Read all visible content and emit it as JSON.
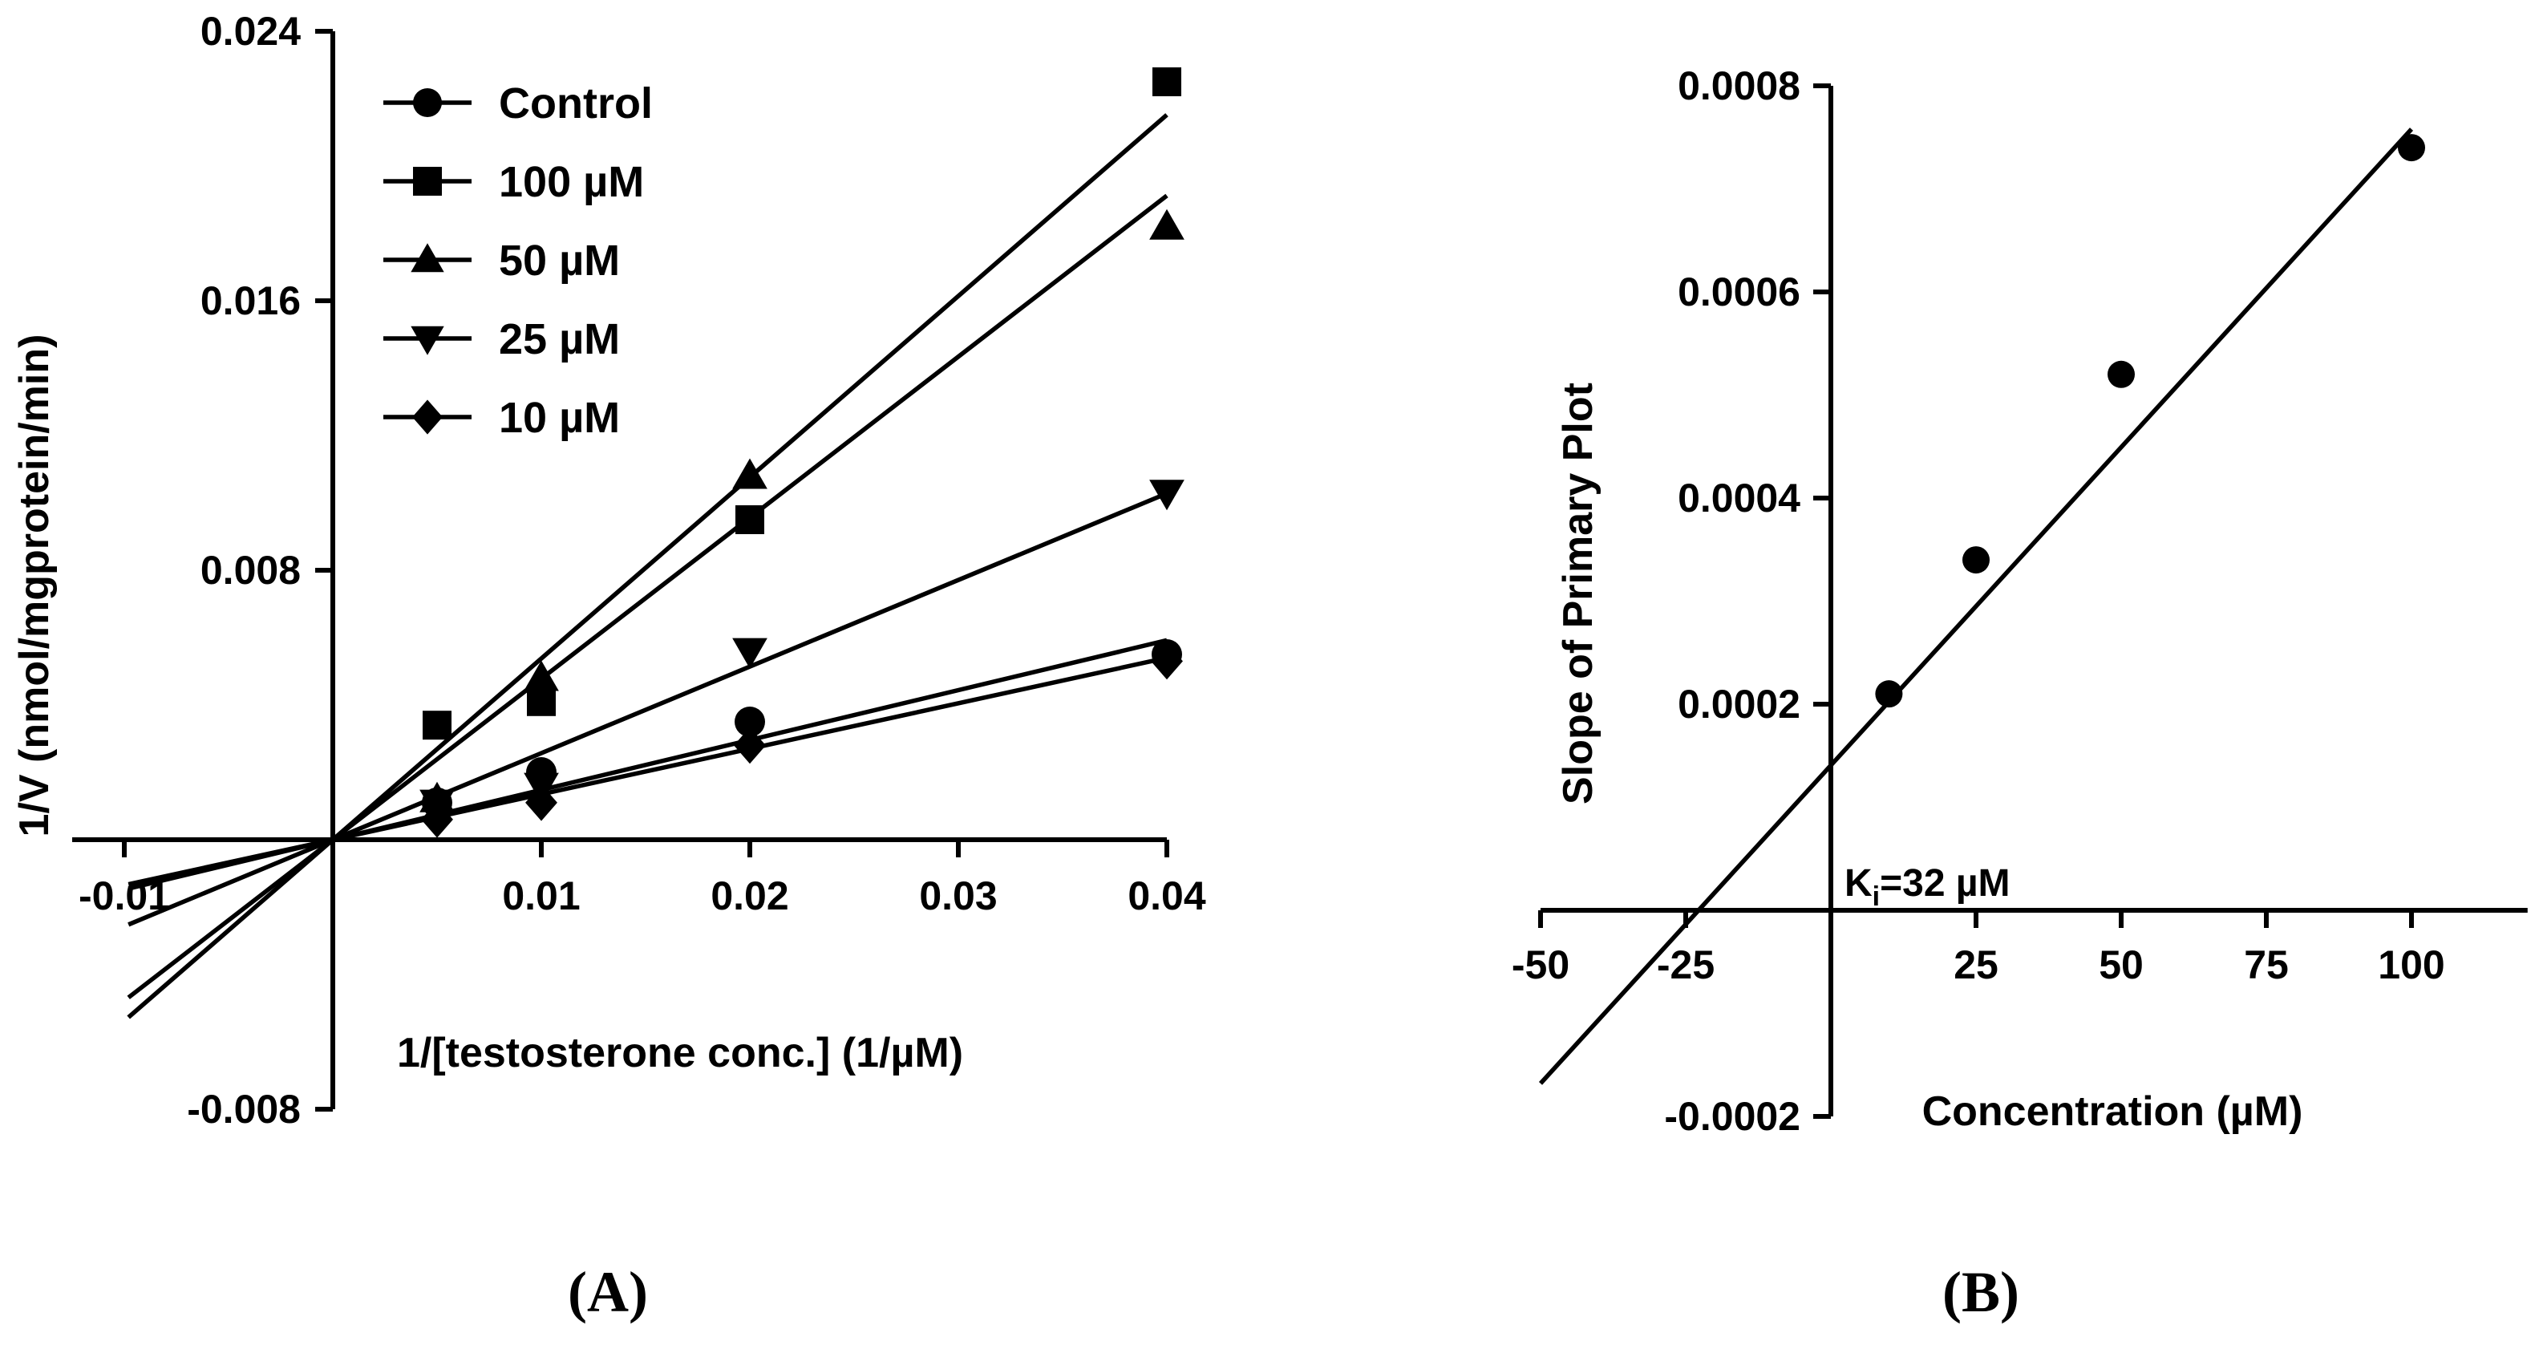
{
  "chart_data": [
    {
      "type": "line",
      "panel_label": "(A)",
      "xlabel": "1/[testosterone conc.] (1/µM)",
      "ylabel": "1/V (nmol/mgprotein/min)",
      "xlim": [
        -0.0125,
        0.04
      ],
      "ylim": [
        -0.008,
        0.024
      ],
      "xticks": [
        -0.01,
        0.01,
        0.02,
        0.03,
        0.04
      ],
      "xtick_labels": [
        "-0.01",
        "0.01",
        "0.02",
        "0.03",
        "0.04"
      ],
      "yticks": [
        -0.008,
        0.008,
        0.016,
        0.024
      ],
      "ytick_labels": [
        "-0.008",
        "0.008",
        "0.016",
        "0.024"
      ],
      "legend_position": "top-left",
      "series": [
        {
          "name": "Control",
          "marker": "circle",
          "x": [
            0.005,
            0.01,
            0.02,
            0.04
          ],
          "y": [
            0.0011,
            0.002,
            0.0035,
            0.0055
          ],
          "fit_slope": 0.148
        },
        {
          "name": "100 µM",
          "marker": "square",
          "x": [
            0.005,
            0.01,
            0.02,
            0.04
          ],
          "y": [
            0.0034,
            0.0041,
            0.0095,
            0.0225
          ],
          "fit_slope": 0.538
        },
        {
          "name": "50 µM",
          "marker": "triangle-up",
          "x": [
            0.005,
            0.01,
            0.02,
            0.04
          ],
          "y": [
            0.0012,
            0.0048,
            0.0108,
            0.0182
          ],
          "fit_slope": 0.478
        },
        {
          "name": "25 µM",
          "marker": "triangle-down",
          "x": [
            0.005,
            0.01,
            0.02,
            0.04
          ],
          "y": [
            0.0011,
            0.0016,
            0.0056,
            0.0103
          ],
          "fit_slope": 0.257
        },
        {
          "name": "10 µM",
          "marker": "diamond",
          "x": [
            0.005,
            0.01,
            0.02,
            0.04
          ],
          "y": [
            0.0006,
            0.0011,
            0.0028,
            0.0053
          ],
          "fit_slope": 0.135
        }
      ]
    },
    {
      "type": "scatter",
      "panel_label": "(B)",
      "xlabel": "Concentration (µM)",
      "ylabel": "Slope of Primary Plot",
      "xlim": [
        -50,
        120
      ],
      "ylim": [
        -0.0002,
        0.0008
      ],
      "xticks": [
        -50,
        -25,
        25,
        50,
        75,
        100
      ],
      "xtick_labels": [
        "-50",
        "-25",
        "25",
        "50",
        "75",
        "100"
      ],
      "yticks": [
        -0.0002,
        0.0002,
        0.0004,
        0.0006,
        0.0008
      ],
      "ytick_labels": [
        "-0.0002",
        "0.0002",
        "0.0004",
        "0.0006",
        "0.0008"
      ],
      "annotation": {
        "main": "K",
        "sub": "i",
        "rest": "=32 µM"
      },
      "points": {
        "x": [
          10,
          25,
          50,
          100
        ],
        "y": [
          0.00021,
          0.00034,
          0.00052,
          0.00074
        ]
      },
      "fit": {
        "x": [
          -50,
          100
        ],
        "y": [
          -0.000168,
          0.000758
        ]
      }
    }
  ]
}
